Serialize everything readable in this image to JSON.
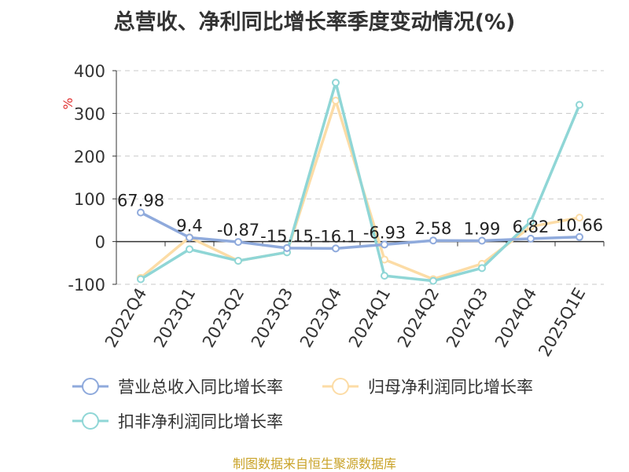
{
  "colors": {
    "revenue": "#8faadc",
    "net_profit": "#fcdca6",
    "deducted_profit": "#8fd6d6",
    "source": "#c9a227",
    "title": "#333333",
    "unit": "#e03030"
  },
  "source_text": "制图数据来自恒生聚源数据库",
  "chart_data": {
    "type": "line",
    "title": "总营收、净利同比增长率季度变动情况(%)",
    "ylabel": "%",
    "ylim": [
      -100,
      400
    ],
    "yticks": [
      -100,
      0,
      100,
      200,
      300,
      400
    ],
    "grid": true,
    "legend_position": "bottom",
    "categories": [
      "2022Q4",
      "2023Q1",
      "2023Q2",
      "2023Q3",
      "2023Q4",
      "2024Q1",
      "2024Q2",
      "2024Q3",
      "2024Q4",
      "2025Q1E"
    ],
    "series": [
      {
        "name": "营业总收入同比增长率",
        "values": [
          67.98,
          9.4,
          -0.87,
          -15.15,
          -16.1,
          -6.93,
          2.58,
          1.99,
          6.82,
          10.66
        ],
        "labels": [
          "67.98",
          "9.4",
          "-0.87",
          "-15.15",
          "-16.1",
          "-6.93",
          "2.58",
          "1.99",
          "6.82",
          "10.66"
        ]
      },
      {
        "name": "归母净利润同比增长率",
        "values": [
          -85,
          10,
          -45,
          -25,
          330,
          -42,
          -88,
          -52,
          35,
          56
        ]
      },
      {
        "name": "扣非净利润同比增长率",
        "values": [
          -88,
          -18,
          -45,
          -25,
          372,
          -80,
          -92,
          -62,
          47,
          320
        ]
      }
    ]
  }
}
